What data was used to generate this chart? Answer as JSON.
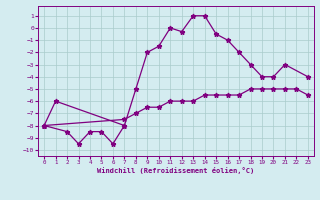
{
  "xlabel": "Windchill (Refroidissement éolien,°C)",
  "line1_x": [
    0,
    1,
    7,
    8,
    9,
    10,
    11,
    12,
    13,
    14,
    15,
    16,
    17,
    18,
    19,
    20,
    21,
    23
  ],
  "line1_y": [
    -8,
    -6,
    -8,
    -5,
    -2,
    -1.5,
    0,
    -0.3,
    1,
    1,
    -0.5,
    -1,
    -2,
    -3,
    -4,
    -4,
    -3,
    -4
  ],
  "line2_x": [
    0,
    2,
    3,
    4,
    5,
    6,
    7
  ],
  "line2_y": [
    -8,
    -8.5,
    -9.5,
    -8.5,
    -8.5,
    -9.5,
    -8
  ],
  "line3_x": [
    0,
    7,
    8,
    9,
    10,
    11,
    12,
    13,
    14,
    15,
    16,
    17,
    18,
    19,
    20,
    21,
    22,
    23
  ],
  "line3_y": [
    -8,
    -7.5,
    -7,
    -6.5,
    -6.5,
    -6,
    -6,
    -6,
    -5.5,
    -5.5,
    -5.5,
    -5.5,
    -5,
    -5,
    -5,
    -5,
    -5,
    -5.5
  ],
  "line_color": "#800080",
  "bg_color": "#d4ecf0",
  "grid_color": "#aacccc",
  "xlim": [
    -0.5,
    23.5
  ],
  "ylim": [
    -10.5,
    1.8
  ],
  "yticks": [
    1,
    0,
    -1,
    -2,
    -3,
    -4,
    -5,
    -6,
    -7,
    -8,
    -9,
    -10
  ],
  "xticks": [
    0,
    1,
    2,
    3,
    4,
    5,
    6,
    7,
    8,
    9,
    10,
    11,
    12,
    13,
    14,
    15,
    16,
    17,
    18,
    19,
    20,
    21,
    22,
    23
  ]
}
